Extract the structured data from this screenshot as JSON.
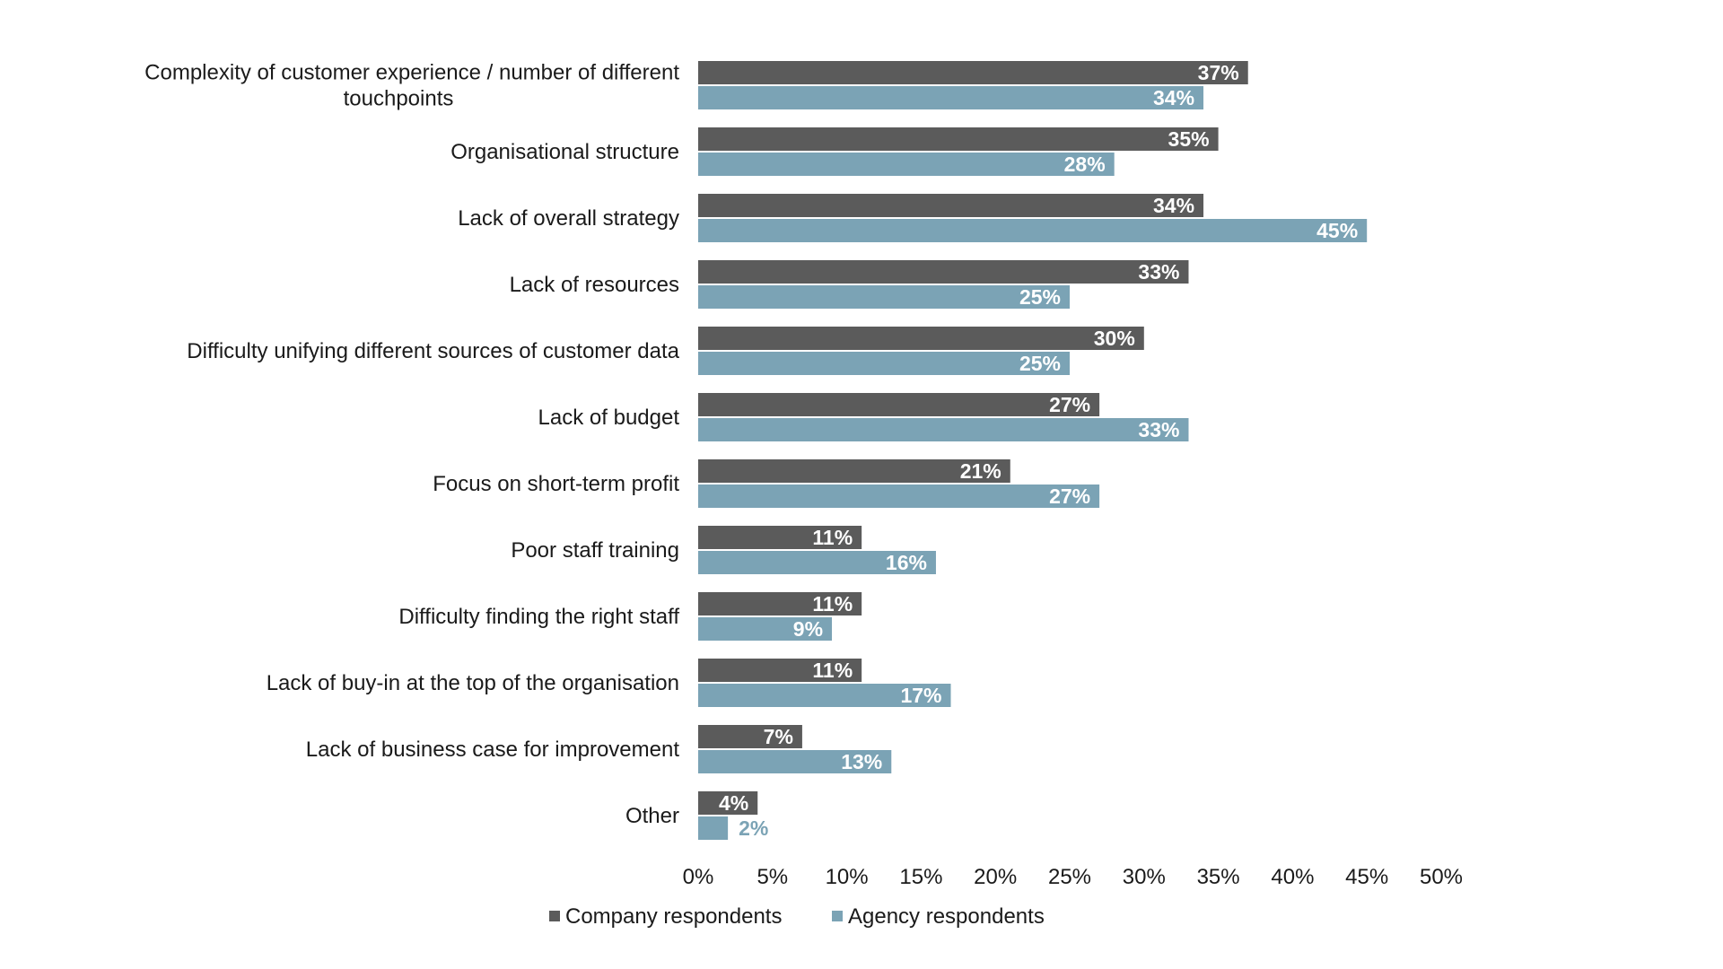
{
  "chart_data": {
    "type": "bar",
    "orientation": "horizontal",
    "categories": [
      [
        "Complexity of customer experience / number of different",
        "touchpoints"
      ],
      [
        "Organisational structure"
      ],
      [
        "Lack of overall strategy"
      ],
      [
        "Lack of resources"
      ],
      [
        "Difficulty unifying different sources of customer data"
      ],
      [
        "Lack of budget"
      ],
      [
        "Focus on short-term profit"
      ],
      [
        "Poor staff training"
      ],
      [
        "Difficulty finding the right staff"
      ],
      [
        "Lack of buy-in at the top of the organisation"
      ],
      [
        "Lack of business case for improvement"
      ],
      [
        "Other"
      ]
    ],
    "series": [
      {
        "name": "Company respondents",
        "color": "#5b5b5b",
        "values": [
          37,
          35,
          34,
          33,
          30,
          27,
          21,
          11,
          11,
          11,
          7,
          4
        ],
        "labels": [
          "37%",
          "35%",
          "34%",
          "33%",
          "30%",
          "27%",
          "21%",
          "11%",
          "11%",
          "11%",
          "7%",
          "4%"
        ]
      },
      {
        "name": "Agency respondents",
        "color": "#7ba3b5",
        "values": [
          34,
          28,
          45,
          25,
          25,
          33,
          27,
          16,
          9,
          17,
          13,
          2
        ],
        "labels": [
          "34%",
          "28%",
          "45%",
          "25%",
          "25%",
          "33%",
          "27%",
          "16%",
          "9%",
          "17%",
          "13%",
          "2%"
        ]
      }
    ],
    "x_ticks": [
      "0%",
      "5%",
      "10%",
      "15%",
      "20%",
      "25%",
      "30%",
      "35%",
      "40%",
      "45%",
      "50%"
    ],
    "xlim": [
      0,
      50
    ],
    "grid": false,
    "legend_position": "bottom-center"
  }
}
